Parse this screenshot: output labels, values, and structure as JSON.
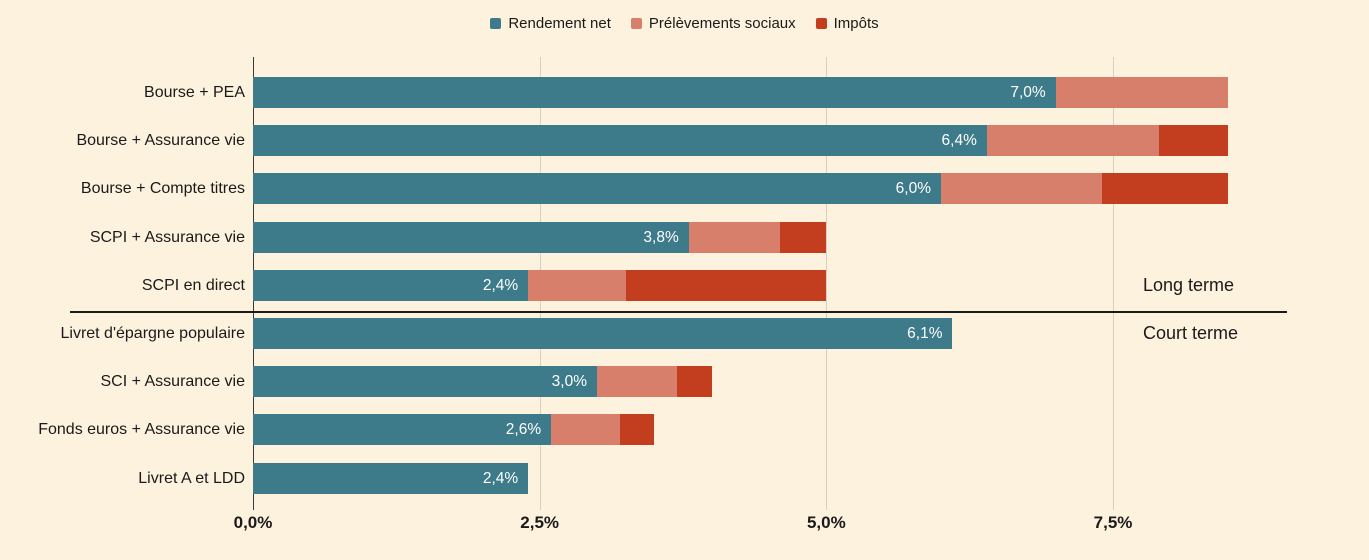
{
  "colors": {
    "background": "#fdf2de",
    "text": "#1a1a1a",
    "grid": "#d9cfbe",
    "axis": "#3a3a3a",
    "divider": "#1a1a1a",
    "value_label": "#ffffff"
  },
  "legend": {
    "items": [
      {
        "label": "Rendement net",
        "color": "#3d7a8a"
      },
      {
        "label": "Prélèvements sociaux",
        "color": "#d87f6b"
      },
      {
        "label": "Impôts",
        "color": "#c33d1f"
      }
    ]
  },
  "chart_data": {
    "type": "bar",
    "orientation": "horizontal",
    "stacked": true,
    "unit": "%",
    "title": "",
    "categories": [
      "Bourse + PEA",
      "Bourse + Assurance vie",
      "Bourse + Compte titres",
      "SCPI + Assurance vie",
      "SCPI en direct",
      "Livret d'épargne populaire",
      "SCI + Assurance vie",
      "Fonds euros + Assurance vie",
      "Livret A et LDD"
    ],
    "series": [
      {
        "name": "Rendement net",
        "color": "#3d7a8a",
        "values": [
          7.0,
          6.4,
          6.0,
          3.8,
          2.4,
          6.1,
          3.0,
          2.6,
          2.4
        ]
      },
      {
        "name": "Prélèvements sociaux",
        "color": "#d87f6b",
        "values": [
          1.5,
          1.5,
          1.4,
          0.8,
          0.85,
          0,
          0.7,
          0.6,
          0
        ]
      },
      {
        "name": "Impôts",
        "color": "#c33d1f",
        "values": [
          0,
          0.6,
          1.1,
          0.4,
          1.75,
          0,
          0.3,
          0.3,
          0
        ]
      }
    ],
    "bar_labels": [
      "7,0%",
      "6,4%",
      "6,0%",
      "3,8%",
      "2,4%",
      "6,1%",
      "3,0%",
      "2,6%",
      "2,4%"
    ],
    "x_ticks": [
      {
        "value": 0.0,
        "label": "0,0%"
      },
      {
        "value": 2.5,
        "label": "2,5%"
      },
      {
        "value": 5.0,
        "label": "5,0%"
      },
      {
        "value": 7.5,
        "label": "7,5%"
      }
    ],
    "xlim": [
      0,
      9.5
    ],
    "grid": true,
    "legend_position": "top",
    "groups": [
      {
        "label": "Long terme",
        "rows": [
          0,
          4
        ]
      },
      {
        "label": "Court terme",
        "rows": [
          5,
          8
        ]
      }
    ]
  }
}
